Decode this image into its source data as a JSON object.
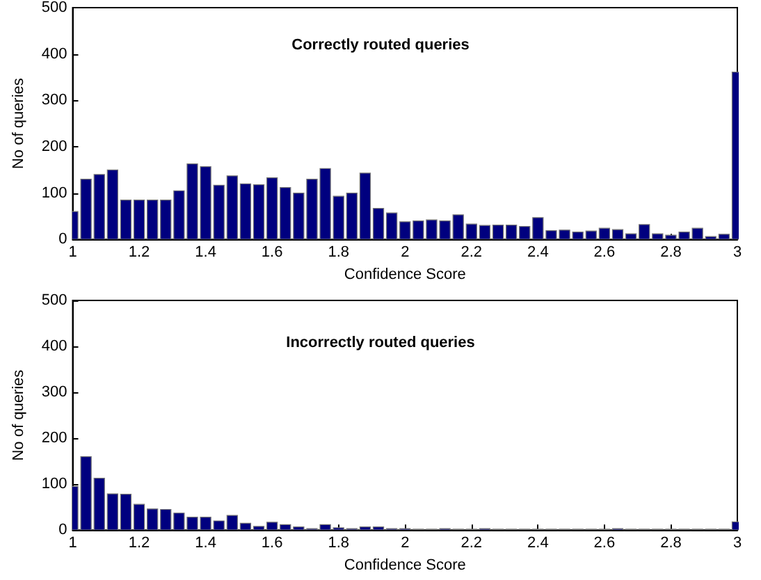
{
  "chart_data": [
    {
      "type": "histogram",
      "title": "Correctly routed queries",
      "xlabel": "Confidence Score",
      "ylabel": "No of queries",
      "color": "#00007f",
      "bins": [
        0.98,
        1.02,
        1.06,
        1.1,
        1.14,
        1.18,
        1.22,
        1.26,
        1.3,
        1.34,
        1.38,
        1.42,
        1.46,
        1.5,
        1.54,
        1.58,
        1.62,
        1.66,
        1.7,
        1.74,
        1.78,
        1.82,
        1.86,
        1.9,
        1.94,
        1.98,
        2.02,
        2.06,
        2.1,
        2.14,
        2.18,
        2.22,
        2.26,
        2.3,
        2.34,
        2.38,
        2.42,
        2.46,
        2.5,
        2.54,
        2.58,
        2.62,
        2.66,
        2.7,
        2.74,
        2.78,
        2.82,
        2.86,
        2.9,
        2.94,
        2.98,
        3.02
      ],
      "values": [
        60,
        130,
        140,
        150,
        85,
        85,
        85,
        85,
        105,
        163,
        157,
        117,
        137,
        120,
        118,
        133,
        112,
        100,
        130,
        153,
        93,
        100,
        143,
        67,
        57,
        38,
        40,
        42,
        40,
        53,
        33,
        30,
        31,
        31,
        28,
        47,
        19,
        20,
        16,
        18,
        24,
        21,
        12,
        32,
        12,
        9,
        16,
        24,
        6,
        11,
        361
      ],
      "xlim": [
        1,
        3
      ],
      "xticks": [
        1,
        1.2,
        1.4,
        1.6,
        1.8,
        2,
        2.2,
        2.4,
        2.6,
        2.8,
        3
      ],
      "ylim": [
        0,
        500
      ],
      "yticks": [
        0,
        100,
        200,
        300,
        400,
        500
      ]
    },
    {
      "type": "histogram",
      "title": "Incorrectly routed queries",
      "xlabel": "Confidence Score",
      "ylabel": "No of queries",
      "color": "#00007f",
      "bins": [
        0.98,
        1.02,
        1.06,
        1.1,
        1.14,
        1.18,
        1.22,
        1.26,
        1.3,
        1.34,
        1.38,
        1.42,
        1.46,
        1.5,
        1.54,
        1.58,
        1.62,
        1.66,
        1.7,
        1.74,
        1.78,
        1.82,
        1.86,
        1.9,
        1.94,
        1.98,
        2.02,
        2.06,
        2.1,
        2.14,
        2.18,
        2.22,
        2.26,
        2.3,
        2.34,
        2.38,
        2.42,
        2.46,
        2.5,
        2.54,
        2.58,
        2.62,
        2.66,
        2.7,
        2.74,
        2.78,
        2.82,
        2.86,
        2.9,
        2.94,
        2.98,
        3.02
      ],
      "values": [
        95,
        160,
        113,
        79,
        78,
        56,
        46,
        45,
        37,
        28,
        28,
        20,
        32,
        15,
        8,
        17,
        12,
        7,
        3,
        12,
        5,
        3,
        7,
        7,
        3,
        3,
        2,
        2,
        3,
        2,
        2,
        3,
        2,
        2,
        2,
        2,
        2,
        2,
        2,
        2,
        2,
        3,
        2,
        2,
        2,
        2,
        2,
        2,
        2,
        2,
        18
      ],
      "xlim": [
        1,
        3
      ],
      "xticks": [
        1,
        1.2,
        1.4,
        1.6,
        1.8,
        2,
        2.2,
        2.4,
        2.6,
        2.8,
        3
      ],
      "ylim": [
        0,
        500
      ],
      "yticks": [
        0,
        100,
        200,
        300,
        400,
        500
      ]
    }
  ]
}
